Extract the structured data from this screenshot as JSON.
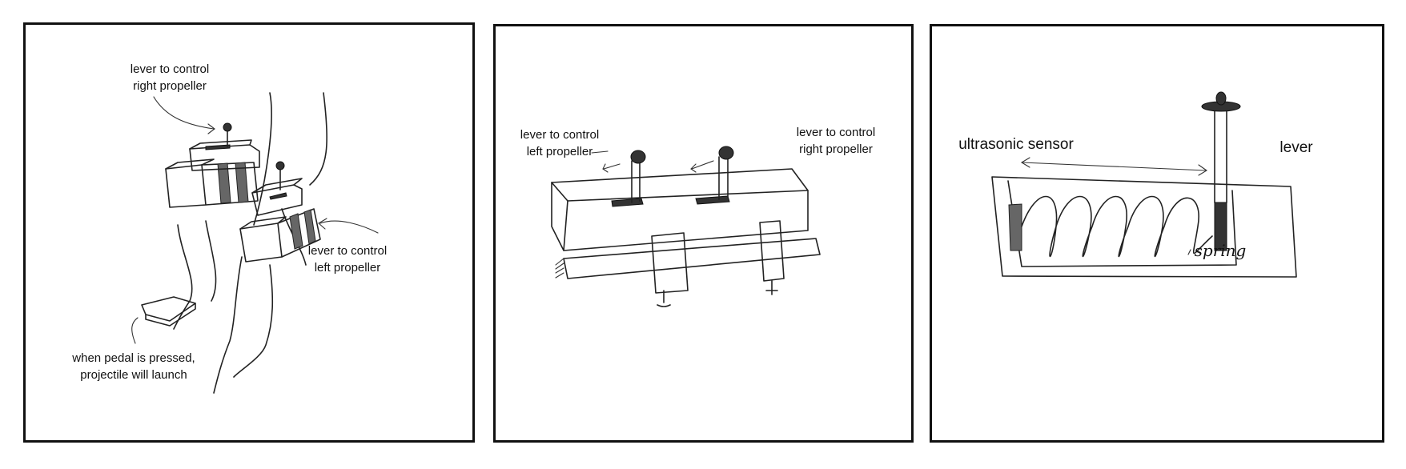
{
  "panels": [
    {
      "labels": {
        "right_lever": "lever to control\nright propeller",
        "left_lever": "lever to control\nleft propeller",
        "pedal": "when pedal is pressed,\nprojectile will launch"
      }
    },
    {
      "labels": {
        "left_lever": "lever to control\nleft propeller",
        "right_lever": "lever to control\nright propeller"
      }
    },
    {
      "labels": {
        "sensor": "ultrasonic sensor",
        "lever": "lever",
        "spring": "spring"
      }
    }
  ]
}
